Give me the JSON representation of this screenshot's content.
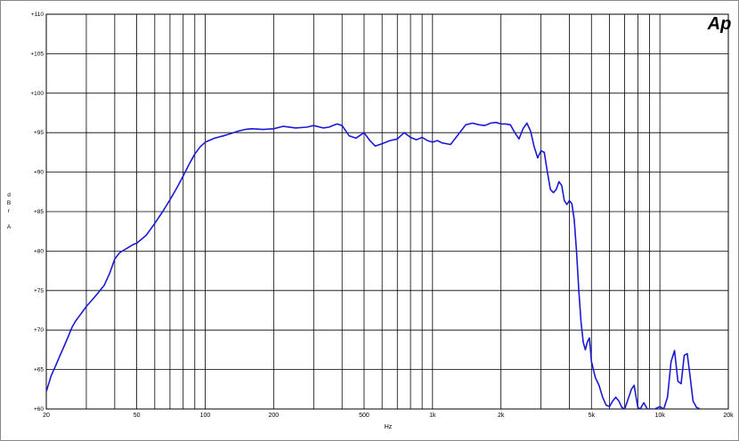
{
  "chart_data": {
    "type": "line",
    "logo": "Ap",
    "xlabel": "Hz",
    "ylabel": [
      "d",
      "B",
      "r",
      "",
      "A"
    ],
    "x_scale": "log",
    "xlim": [
      20,
      20000
    ],
    "ylim": [
      60,
      110
    ],
    "grid": true,
    "x_ticks": [
      {
        "value": 20,
        "label": "20"
      },
      {
        "value": 50,
        "label": "50"
      },
      {
        "value": 100,
        "label": "100"
      },
      {
        "value": 200,
        "label": "200"
      },
      {
        "value": 500,
        "label": "500"
      },
      {
        "value": 1000,
        "label": "1k"
      },
      {
        "value": 2000,
        "label": "2k"
      },
      {
        "value": 5000,
        "label": "5k"
      },
      {
        "value": 10000,
        "label": "10k"
      },
      {
        "value": 20000,
        "label": "20k"
      }
    ],
    "x_gridlines": [
      20,
      30,
      40,
      50,
      60,
      70,
      80,
      90,
      100,
      200,
      300,
      400,
      500,
      600,
      700,
      800,
      900,
      1000,
      2000,
      3000,
      4000,
      5000,
      6000,
      7000,
      8000,
      9000,
      10000,
      20000
    ],
    "y_ticks": [
      {
        "value": 60,
        "label": "+60"
      },
      {
        "value": 65,
        "label": "+65"
      },
      {
        "value": 70,
        "label": "+70"
      },
      {
        "value": 75,
        "label": "+75"
      },
      {
        "value": 80,
        "label": "+80"
      },
      {
        "value": 85,
        "label": "+85"
      },
      {
        "value": 90,
        "label": "+90"
      },
      {
        "value": 95,
        "label": "+95"
      },
      {
        "value": 100,
        "label": "+100"
      },
      {
        "value": 105,
        "label": "+105"
      },
      {
        "value": 110,
        "label": "+110"
      }
    ],
    "colors": {
      "line": "#1a1ad6",
      "logo": "#1a3cff",
      "grid": "#000000"
    },
    "series": [
      {
        "x": [
          20,
          21,
          22,
          23,
          24,
          25,
          26,
          27,
          28,
          29,
          30,
          32,
          34,
          36,
          38,
          40,
          42,
          45,
          48,
          50,
          55,
          60,
          65,
          70,
          75,
          80,
          85,
          90,
          95,
          100,
          110,
          120,
          130,
          140,
          150,
          160,
          180,
          200,
          220,
          250,
          280,
          300,
          330,
          350,
          380,
          400,
          430,
          460,
          500,
          530,
          560,
          600,
          650,
          700,
          750,
          800,
          850,
          900,
          950,
          1000,
          1050,
          1100,
          1200,
          1300,
          1400,
          1500,
          1600,
          1700,
          1800,
          1900,
          2000,
          2100,
          2200,
          2300,
          2400,
          2500,
          2600,
          2700,
          2800,
          2900,
          3000,
          3100,
          3200,
          3300,
          3400,
          3500,
          3600,
          3700,
          3800,
          3900,
          4000,
          4100,
          4200,
          4300,
          4400,
          4500,
          4600,
          4700,
          4800,
          4900,
          5000,
          5200,
          5400,
          5600,
          5800,
          6000,
          6200,
          6400,
          6600,
          6800,
          7000,
          7200,
          7500,
          7700,
          8000,
          8200,
          8500,
          8800,
          9000,
          9500,
          10000,
          10400,
          10800,
          11200,
          11600,
          12000,
          12400,
          12800,
          13200,
          13600,
          14000,
          14500,
          15000
        ],
        "y": [
          62.2,
          64.2,
          65.5,
          66.8,
          68.0,
          69.2,
          70.4,
          71.2,
          71.8,
          72.4,
          73.0,
          73.9,
          74.8,
          75.7,
          77.2,
          79.0,
          79.8,
          80.3,
          80.8,
          81.0,
          82.0,
          83.5,
          85.0,
          86.5,
          88.0,
          89.5,
          91.0,
          92.3,
          93.2,
          93.8,
          94.3,
          94.6,
          94.9,
          95.2,
          95.4,
          95.5,
          95.4,
          95.5,
          95.8,
          95.6,
          95.7,
          95.9,
          95.6,
          95.7,
          96.1,
          95.9,
          94.6,
          94.3,
          95.0,
          94.0,
          93.3,
          93.6,
          94.0,
          94.2,
          95.0,
          94.4,
          94.1,
          94.4,
          94.0,
          93.8,
          94.0,
          93.7,
          93.5,
          94.8,
          96.0,
          96.2,
          96.0,
          95.9,
          96.2,
          96.3,
          96.1,
          96.1,
          96.0,
          95.0,
          94.2,
          95.5,
          96.2,
          95.2,
          93.2,
          91.8,
          92.7,
          92.5,
          90.0,
          87.8,
          87.4,
          87.8,
          88.8,
          88.3,
          86.4,
          85.9,
          86.4,
          86.0,
          84.0,
          80.0,
          75.0,
          71.0,
          68.5,
          67.5,
          68.5,
          69.0,
          66.0,
          64.0,
          63.0,
          61.5,
          60.5,
          60.3,
          61.0,
          61.5,
          61.0,
          60.2,
          60.0,
          61.0,
          62.5,
          63.0,
          60.2,
          60.0,
          60.8,
          60.0,
          60.0,
          60.0,
          60.3,
          60.0,
          61.5,
          66.0,
          67.4,
          63.5,
          63.2,
          66.8,
          67.0,
          64.0,
          61.0,
          60.2,
          60.0
        ]
      }
    ]
  }
}
